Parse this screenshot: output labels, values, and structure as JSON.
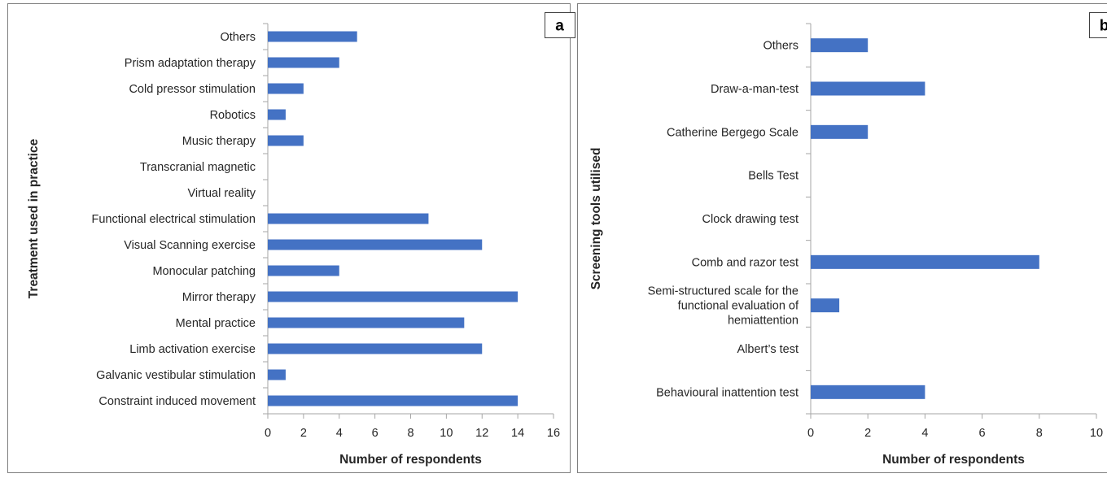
{
  "colors": {
    "bar": "#4472c4"
  },
  "chart_data": [
    {
      "type": "bar",
      "orientation": "horizontal",
      "panel_label": "a",
      "title": "",
      "xlabel": "Number of respondents",
      "ylabel": "Treatment used in practice",
      "xlim": [
        0,
        16
      ],
      "xticks": [
        "0",
        "2",
        "4",
        "6",
        "8",
        "10",
        "12",
        "14",
        "16"
      ],
      "categories": [
        "Others",
        "Prism adaptation therapy",
        "Cold pressor stimulation",
        "Robotics",
        "Music therapy",
        "Transcranial magnetic",
        "Virtual reality",
        "Functional electrical stimulation",
        "Visual Scanning exercise",
        "Monocular patching",
        "Mirror therapy",
        "Mental practice",
        "Limb activation exercise",
        "Galvanic vestibular stimulation",
        "Constraint induced movement"
      ],
      "values": [
        5,
        4,
        2,
        1,
        2,
        0,
        0,
        9,
        12,
        4,
        14,
        11,
        12,
        1,
        14
      ],
      "grid": false,
      "legend": "none"
    },
    {
      "type": "bar",
      "orientation": "horizontal",
      "panel_label": "b",
      "title": "",
      "xlabel": "Number of respondents",
      "ylabel": "Screening tools utilised",
      "xlim": [
        0,
        10
      ],
      "xticks": [
        "0",
        "2",
        "4",
        "6",
        "8",
        "10"
      ],
      "categories": [
        [
          "Others"
        ],
        [
          "Draw-a-man-test"
        ],
        [
          "Catherine Bergego Scale"
        ],
        [
          "Bells Test"
        ],
        [
          "Clock drawing test"
        ],
        [
          "Comb and razor test"
        ],
        [
          "Semi-structured scale for the",
          "functional evaluation of",
          "hemiattention"
        ],
        [
          "Albert’s test"
        ],
        [
          "Behavioural inattention test"
        ]
      ],
      "values": [
        2,
        4,
        2,
        0,
        0,
        8,
        1,
        0,
        4
      ],
      "grid": false,
      "legend": "none"
    }
  ]
}
